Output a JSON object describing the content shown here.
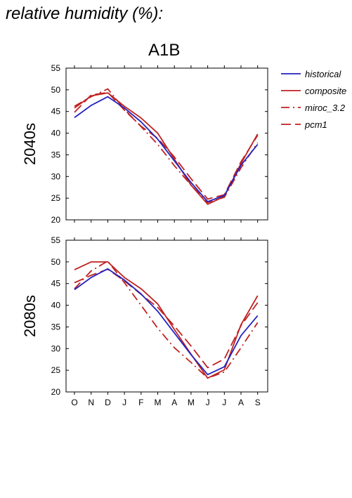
{
  "heading": "relative humidity (%):",
  "scenario": "A1B",
  "colors": {
    "historical": "#2323c0",
    "models": "#bf2222"
  },
  "legend": [
    {
      "label": "historical",
      "style": "solid",
      "color": "#2323c0"
    },
    {
      "label": "composite",
      "style": "solid",
      "color": "#bf2222"
    },
    {
      "label": "miroc_3.2",
      "style": "dashdot",
      "color": "#bf2222"
    },
    {
      "label": "pcm1",
      "style": "dash",
      "color": "#bf2222"
    }
  ],
  "chart_data": [
    {
      "type": "line",
      "ylabel": "2040s",
      "ylim": [
        20,
        55
      ],
      "yticks": [
        20,
        25,
        30,
        35,
        40,
        45,
        50,
        55
      ],
      "categories": [
        "O",
        "N",
        "D",
        "J",
        "F",
        "M",
        "A",
        "M",
        "J",
        "J",
        "A",
        "S"
      ],
      "series": [
        {
          "name": "historical",
          "style": "solid",
          "color": "#2323c0",
          "values": [
            43.6,
            46.4,
            48.4,
            45.8,
            42.6,
            38.6,
            33.6,
            28.6,
            24.2,
            25.6,
            32.6,
            37.4
          ]
        },
        {
          "name": "composite",
          "style": "solid",
          "color": "#bf2222",
          "values": [
            45.8,
            48.6,
            49.3,
            46.2,
            43.5,
            40.0,
            34.0,
            28.0,
            23.6,
            25.4,
            33.0,
            39.8
          ]
        },
        {
          "name": "miroc_3.2",
          "style": "dashdot",
          "color": "#bf2222",
          "values": [
            46.2,
            48.4,
            50.2,
            45.5,
            41.5,
            37.4,
            32.5,
            28.0,
            24.0,
            25.2,
            32.0,
            37.8
          ]
        },
        {
          "name": "pcm1",
          "style": "dash",
          "color": "#bf2222",
          "values": [
            44.8,
            48.8,
            49.4,
            45.3,
            41.6,
            38.8,
            34.5,
            29.5,
            24.8,
            25.8,
            33.4,
            39.5
          ]
        }
      ]
    },
    {
      "type": "line",
      "ylabel": "2080s",
      "ylim": [
        20,
        55
      ],
      "yticks": [
        20,
        25,
        30,
        35,
        40,
        45,
        50,
        55
      ],
      "categories": [
        "O",
        "N",
        "D",
        "J",
        "F",
        "M",
        "A",
        "M",
        "J",
        "J",
        "A",
        "S"
      ],
      "series": [
        {
          "name": "historical",
          "style": "solid",
          "color": "#2323c0",
          "values": [
            43.6,
            46.4,
            48.4,
            45.8,
            42.6,
            38.6,
            33.6,
            28.6,
            24.0,
            25.8,
            33.0,
            37.6
          ]
        },
        {
          "name": "composite",
          "style": "solid",
          "color": "#bf2222",
          "values": [
            48.2,
            50.0,
            50.0,
            46.4,
            43.8,
            40.3,
            34.4,
            28.7,
            23.2,
            25.1,
            35.5,
            42.2
          ]
        },
        {
          "name": "miroc_3.2",
          "style": "dashdot",
          "color": "#bf2222",
          "values": [
            43.8,
            47.9,
            50.2,
            45.2,
            40.0,
            34.7,
            30.2,
            26.8,
            23.2,
            24.6,
            30.2,
            36.0
          ]
        },
        {
          "name": "pcm1",
          "style": "dash",
          "color": "#bf2222",
          "values": [
            45.2,
            46.9,
            48.3,
            45.6,
            42.5,
            39.5,
            35.2,
            30.6,
            25.6,
            27.6,
            35.3,
            40.6
          ]
        }
      ]
    }
  ]
}
